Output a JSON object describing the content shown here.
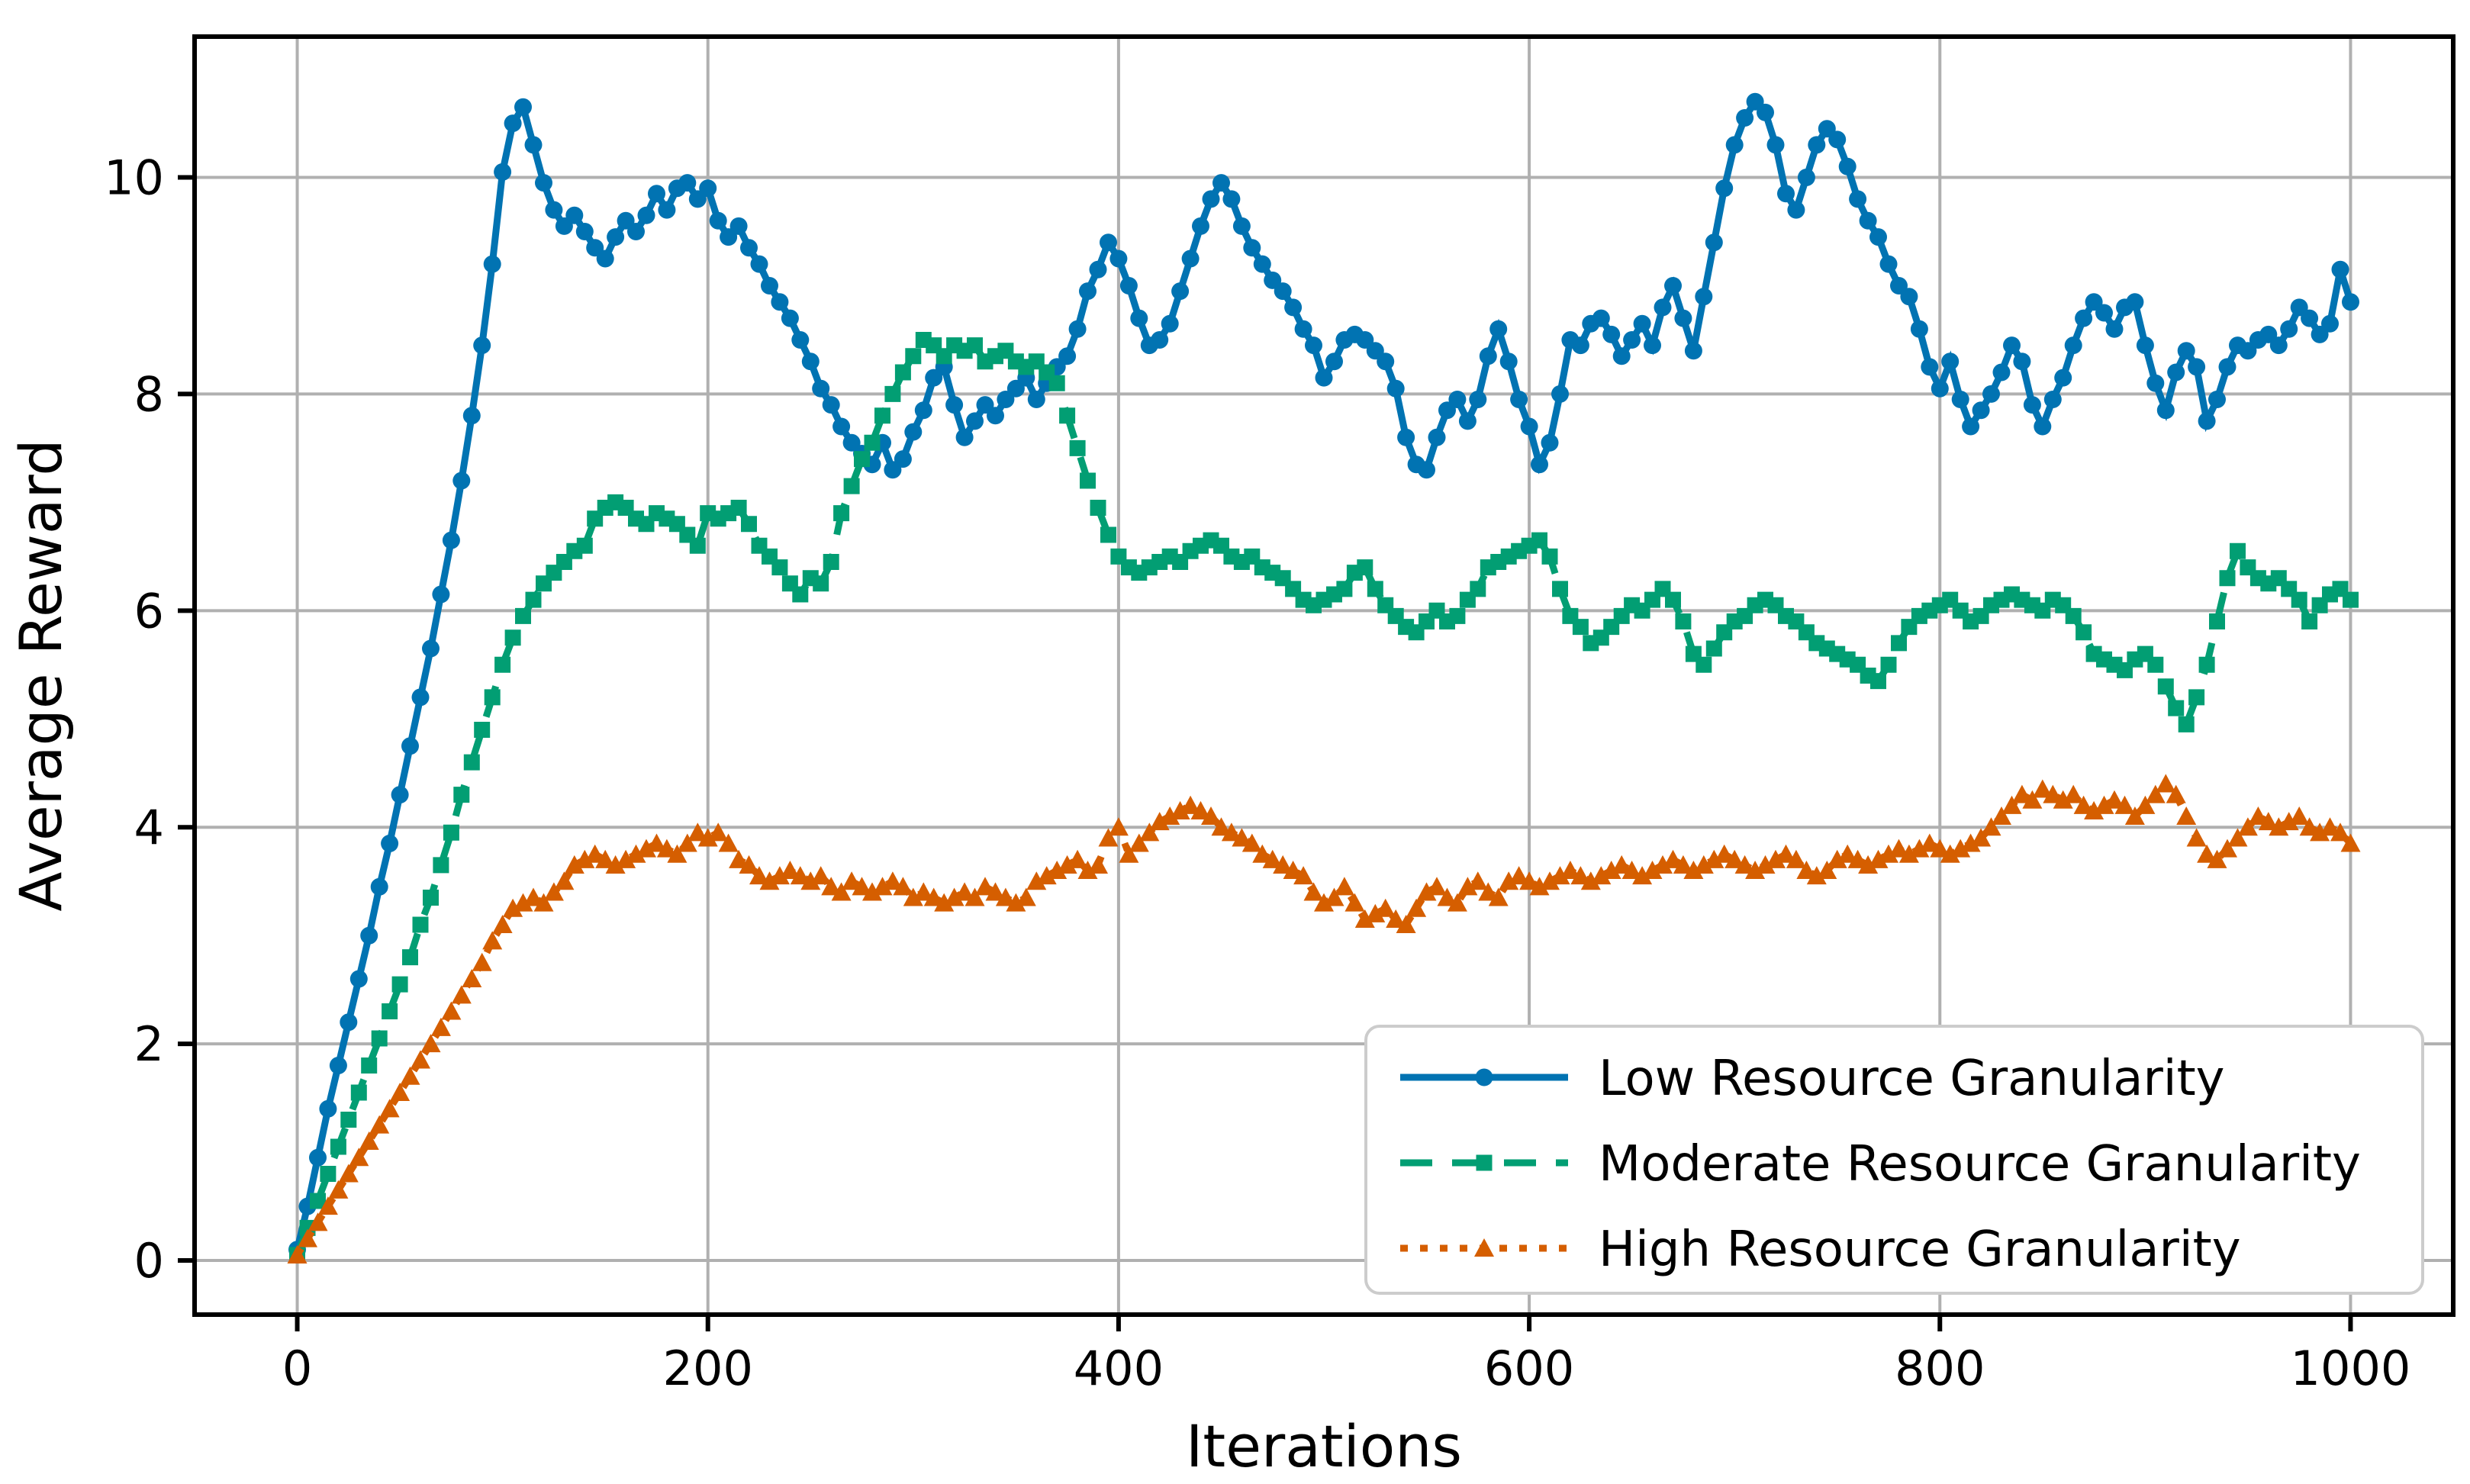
{
  "chart_data": {
    "type": "line",
    "title": "",
    "xlabel": "Iterations",
    "ylabel": "Average Reward",
    "xlim": [
      -50,
      1050
    ],
    "ylim": [
      -0.5,
      11.3
    ],
    "xticks": [
      0,
      200,
      400,
      600,
      800,
      1000
    ],
    "yticks": [
      0,
      2,
      4,
      6,
      8,
      10
    ],
    "grid": true,
    "grid_color": "#b0b0b0",
    "legend_position": "lower right",
    "legend_border_color": "#cccccc",
    "x": {
      "start": 0,
      "step": 5,
      "count": 201
    },
    "series": [
      {
        "name": "Low Resource Granularity",
        "color": "#0173b2",
        "line_style": "solid",
        "marker": "circle",
        "values": [
          0.1,
          0.5,
          0.95,
          1.4,
          1.8,
          2.2,
          2.6,
          3.0,
          3.45,
          3.85,
          4.3,
          4.75,
          5.2,
          5.65,
          6.15,
          6.65,
          7.2,
          7.8,
          8.45,
          9.2,
          10.05,
          10.5,
          10.65,
          10.3,
          9.95,
          9.7,
          9.55,
          9.65,
          9.5,
          9.35,
          9.25,
          9.45,
          9.6,
          9.5,
          9.65,
          9.85,
          9.7,
          9.9,
          9.95,
          9.8,
          9.9,
          9.6,
          9.45,
          9.55,
          9.35,
          9.2,
          9.0,
          8.85,
          8.7,
          8.5,
          8.3,
          8.05,
          7.9,
          7.7,
          7.55,
          7.45,
          7.35,
          7.55,
          7.3,
          7.4,
          7.65,
          7.85,
          8.15,
          8.25,
          7.9,
          7.6,
          7.75,
          7.9,
          7.8,
          7.95,
          8.05,
          8.15,
          7.95,
          8.1,
          8.25,
          8.35,
          8.6,
          8.95,
          9.15,
          9.4,
          9.25,
          9.0,
          8.7,
          8.45,
          8.5,
          8.65,
          8.95,
          9.25,
          9.55,
          9.8,
          9.95,
          9.8,
          9.55,
          9.35,
          9.2,
          9.05,
          8.95,
          8.8,
          8.6,
          8.45,
          8.15,
          8.3,
          8.5,
          8.55,
          8.5,
          8.4,
          8.3,
          8.05,
          7.6,
          7.35,
          7.3,
          7.6,
          7.85,
          7.95,
          7.75,
          7.95,
          8.35,
          8.6,
          8.3,
          7.95,
          7.7,
          7.35,
          7.55,
          8.0,
          8.5,
          8.45,
          8.65,
          8.7,
          8.55,
          8.35,
          8.5,
          8.65,
          8.45,
          8.8,
          9.0,
          8.7,
          8.4,
          8.9,
          9.4,
          9.9,
          10.3,
          10.55,
          10.7,
          10.6,
          10.3,
          9.85,
          9.7,
          10.0,
          10.3,
          10.45,
          10.35,
          10.1,
          9.8,
          9.6,
          9.45,
          9.2,
          9.0,
          8.9,
          8.6,
          8.25,
          8.05,
          8.3,
          7.95,
          7.7,
          7.85,
          8.0,
          8.2,
          8.45,
          8.3,
          7.9,
          7.7,
          7.95,
          8.15,
          8.45,
          8.7,
          8.85,
          8.75,
          8.6,
          8.8,
          8.85,
          8.45,
          8.1,
          7.85,
          8.2,
          8.4,
          8.25,
          7.75,
          7.95,
          8.25,
          8.45,
          8.4,
          8.5,
          8.55,
          8.45,
          8.6,
          8.8,
          8.7,
          8.55,
          8.65,
          9.15,
          8.85
        ]
      },
      {
        "name": "Moderate Resource Granularity",
        "color": "#029e73",
        "line_style": "dashed",
        "marker": "square",
        "values": [
          0.05,
          0.3,
          0.55,
          0.8,
          1.05,
          1.3,
          1.55,
          1.8,
          2.05,
          2.3,
          2.55,
          2.8,
          3.1,
          3.35,
          3.65,
          3.95,
          4.3,
          4.6,
          4.9,
          5.2,
          5.5,
          5.75,
          5.95,
          6.1,
          6.25,
          6.35,
          6.45,
          6.55,
          6.6,
          6.85,
          6.95,
          7.0,
          6.95,
          6.85,
          6.8,
          6.9,
          6.85,
          6.8,
          6.7,
          6.6,
          6.9,
          6.85,
          6.9,
          6.95,
          6.8,
          6.6,
          6.5,
          6.4,
          6.25,
          6.15,
          6.3,
          6.25,
          6.45,
          6.9,
          7.15,
          7.4,
          7.55,
          7.8,
          8.0,
          8.2,
          8.35,
          8.5,
          8.45,
          8.35,
          8.45,
          8.4,
          8.45,
          8.3,
          8.35,
          8.4,
          8.3,
          8.25,
          8.3,
          8.2,
          8.1,
          7.8,
          7.5,
          7.2,
          6.95,
          6.7,
          6.5,
          6.4,
          6.35,
          6.4,
          6.45,
          6.5,
          6.45,
          6.55,
          6.6,
          6.65,
          6.6,
          6.5,
          6.45,
          6.5,
          6.4,
          6.35,
          6.3,
          6.2,
          6.1,
          6.05,
          6.1,
          6.15,
          6.2,
          6.35,
          6.4,
          6.2,
          6.05,
          5.95,
          5.85,
          5.8,
          5.9,
          6.0,
          5.9,
          5.95,
          6.1,
          6.2,
          6.4,
          6.45,
          6.5,
          6.55,
          6.6,
          6.65,
          6.5,
          6.2,
          5.95,
          5.85,
          5.7,
          5.75,
          5.85,
          5.95,
          6.05,
          6.0,
          6.1,
          6.2,
          6.1,
          5.9,
          5.6,
          5.5,
          5.65,
          5.8,
          5.9,
          5.95,
          6.05,
          6.1,
          6.05,
          5.95,
          5.9,
          5.8,
          5.7,
          5.65,
          5.6,
          5.55,
          5.5,
          5.4,
          5.35,
          5.5,
          5.7,
          5.85,
          5.95,
          6.0,
          6.05,
          6.1,
          6.0,
          5.9,
          5.95,
          6.05,
          6.1,
          6.15,
          6.1,
          6.05,
          6.0,
          6.1,
          6.05,
          5.95,
          5.8,
          5.6,
          5.55,
          5.5,
          5.45,
          5.55,
          5.6,
          5.5,
          5.3,
          5.1,
          4.95,
          5.2,
          5.5,
          5.9,
          6.3,
          6.55,
          6.4,
          6.3,
          6.25,
          6.3,
          6.2,
          6.1,
          5.9,
          6.05,
          6.15,
          6.2,
          6.1
        ]
      },
      {
        "name": "High Resource Granularity",
        "color": "#d55e00",
        "line_style": "dotted",
        "marker": "triangle",
        "values": [
          0.05,
          0.2,
          0.35,
          0.5,
          0.65,
          0.8,
          0.95,
          1.1,
          1.25,
          1.4,
          1.55,
          1.7,
          1.85,
          2.0,
          2.15,
          2.3,
          2.45,
          2.6,
          2.75,
          2.95,
          3.1,
          3.25,
          3.3,
          3.35,
          3.3,
          3.4,
          3.5,
          3.65,
          3.7,
          3.75,
          3.7,
          3.65,
          3.7,
          3.75,
          3.8,
          3.85,
          3.8,
          3.75,
          3.85,
          3.95,
          3.9,
          3.95,
          3.85,
          3.7,
          3.65,
          3.55,
          3.5,
          3.55,
          3.6,
          3.55,
          3.5,
          3.55,
          3.45,
          3.4,
          3.5,
          3.45,
          3.4,
          3.45,
          3.5,
          3.45,
          3.35,
          3.4,
          3.35,
          3.3,
          3.35,
          3.4,
          3.35,
          3.45,
          3.4,
          3.35,
          3.3,
          3.35,
          3.5,
          3.55,
          3.6,
          3.65,
          3.7,
          3.6,
          3.65,
          3.9,
          4.0,
          3.75,
          3.85,
          3.95,
          4.05,
          4.1,
          4.15,
          4.2,
          4.15,
          4.1,
          4.0,
          3.95,
          3.9,
          3.85,
          3.75,
          3.7,
          3.65,
          3.6,
          3.55,
          3.4,
          3.3,
          3.35,
          3.45,
          3.3,
          3.15,
          3.2,
          3.25,
          3.15,
          3.1,
          3.25,
          3.4,
          3.45,
          3.35,
          3.3,
          3.45,
          3.5,
          3.4,
          3.35,
          3.5,
          3.55,
          3.5,
          3.45,
          3.5,
          3.55,
          3.6,
          3.55,
          3.5,
          3.55,
          3.6,
          3.65,
          3.6,
          3.55,
          3.6,
          3.65,
          3.7,
          3.65,
          3.6,
          3.65,
          3.7,
          3.75,
          3.7,
          3.65,
          3.6,
          3.65,
          3.7,
          3.75,
          3.7,
          3.6,
          3.55,
          3.6,
          3.7,
          3.75,
          3.7,
          3.65,
          3.7,
          3.75,
          3.8,
          3.75,
          3.8,
          3.85,
          3.8,
          3.75,
          3.8,
          3.85,
          3.9,
          4.0,
          4.1,
          4.2,
          4.3,
          4.25,
          4.35,
          4.3,
          4.25,
          4.3,
          4.2,
          4.15,
          4.2,
          4.25,
          4.2,
          4.1,
          4.2,
          4.3,
          4.4,
          4.3,
          4.1,
          3.9,
          3.75,
          3.7,
          3.8,
          3.9,
          4.0,
          4.1,
          4.05,
          4.0,
          4.05,
          4.1,
          4.0,
          3.95,
          4.0,
          3.95,
          3.85
        ]
      }
    ]
  }
}
